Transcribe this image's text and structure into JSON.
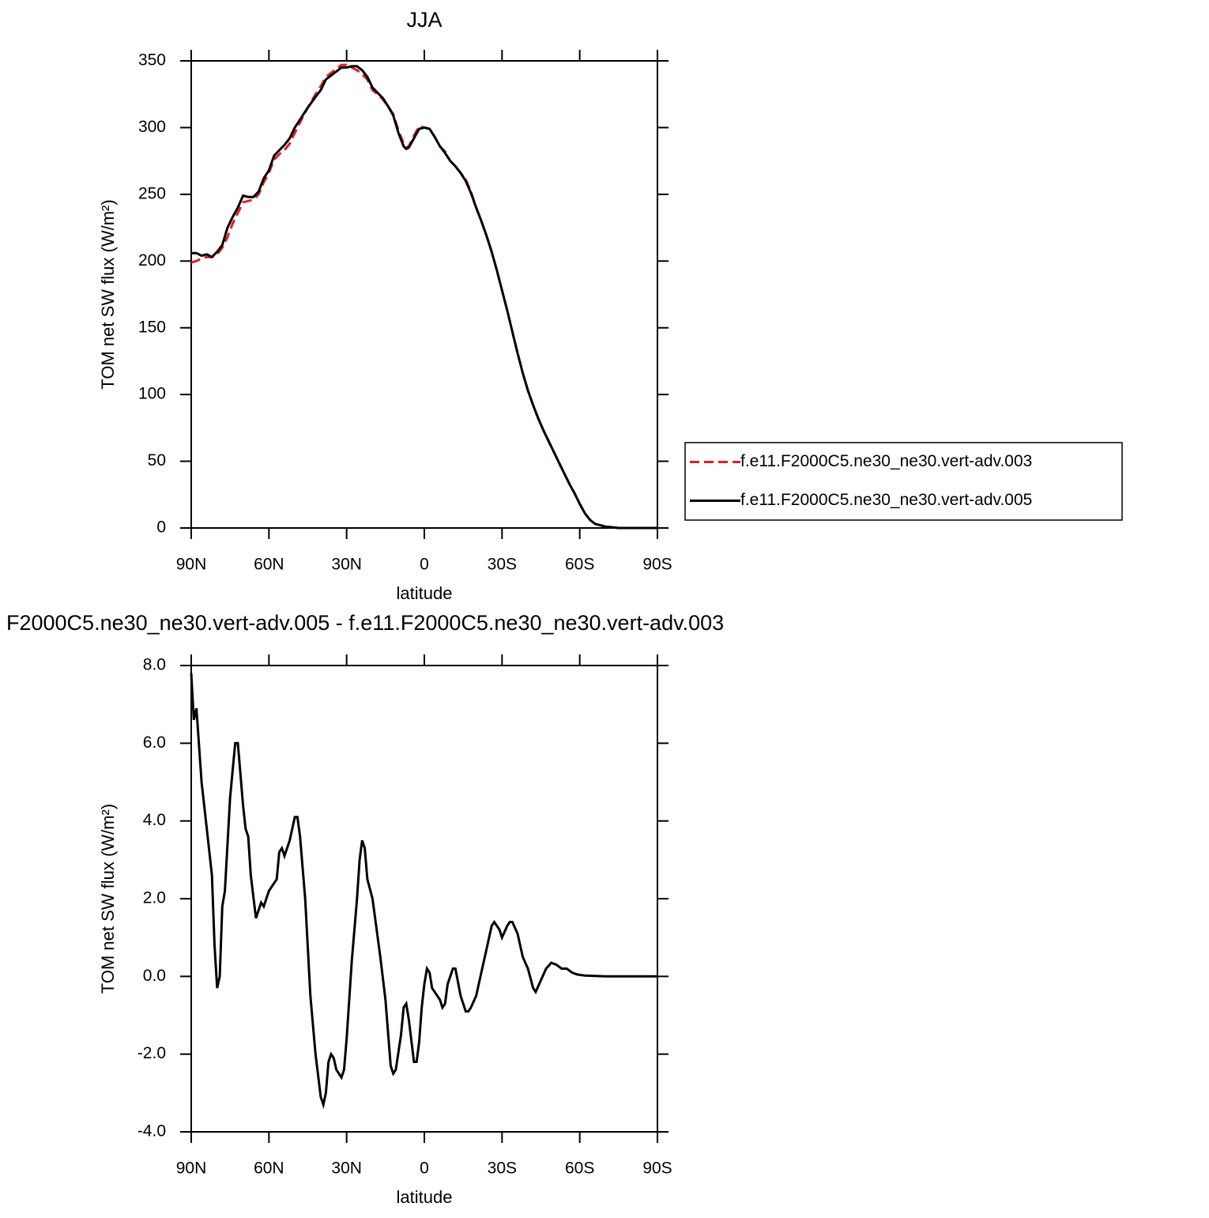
{
  "chart_data": [
    {
      "type": "line",
      "title": "JJA",
      "xlabel": "latitude",
      "ylabel": "TOM net SW flux (W/m²)",
      "x": [
        90,
        88,
        86,
        84,
        82,
        80,
        78,
        76,
        74,
        72,
        70,
        68,
        66,
        64,
        62,
        60,
        58,
        56,
        54,
        52,
        50,
        48,
        45,
        42,
        40,
        38,
        36,
        34,
        32,
        30,
        28,
        26,
        24,
        22,
        20,
        18,
        16,
        14,
        12,
        10,
        8,
        7,
        6,
        4,
        2,
        0,
        -2,
        -4,
        -6,
        -8,
        -10,
        -12,
        -14,
        -16,
        -18,
        -20,
        -22,
        -24,
        -26,
        -28,
        -30,
        -32,
        -34,
        -36,
        -38,
        -40,
        -42,
        -44,
        -46,
        -48,
        -50,
        -52,
        -54,
        -56,
        -58,
        -60,
        -62,
        -64,
        -66,
        -68,
        -70,
        -75,
        -80,
        -85,
        -90
      ],
      "series": [
        {
          "name": "f.e11.F2000C5.ne30_ne30.vert-adv.003",
          "color": "#e02020",
          "linestyle": "dashed",
          "values": [
            199,
            200,
            202,
            203,
            203,
            205,
            210,
            218,
            228,
            236,
            244,
            245,
            246,
            250,
            259,
            266,
            276,
            280,
            283,
            288,
            296,
            304,
            315,
            325,
            331,
            338,
            341,
            344,
            347,
            347,
            345,
            343,
            340,
            336,
            328,
            325,
            321,
            316,
            310,
            298,
            288,
            285,
            286,
            294,
            301,
            300,
            299,
            293,
            286,
            282,
            275,
            271,
            266,
            261,
            252,
            240,
            230,
            219,
            207,
            193,
            178,
            163,
            147,
            131,
            116,
            103,
            92,
            82,
            73,
            65,
            57,
            49,
            41,
            33,
            26,
            18,
            11,
            6,
            3,
            2,
            1,
            0,
            0,
            0,
            0
          ]
        },
        {
          "name": "f.e11.F2000C5.ne30_ne30.vert-adv.005",
          "color": "#000000",
          "linestyle": "solid",
          "values": [
            206,
            206,
            204,
            205,
            203,
            207,
            212,
            225,
            233,
            240,
            249,
            248,
            248,
            252,
            262,
            268,
            279,
            283,
            287,
            292,
            300,
            306,
            315,
            323,
            328,
            336,
            339,
            342,
            345,
            345,
            346,
            346,
            343,
            338,
            330,
            326,
            322,
            316,
            309,
            296,
            286,
            284,
            285,
            292,
            299,
            300,
            299,
            293,
            286,
            281,
            275,
            271,
            266,
            260,
            251,
            240,
            230,
            219,
            207,
            193,
            178,
            163,
            147,
            131,
            116,
            103,
            92,
            82,
            73,
            65,
            57,
            49,
            41,
            33,
            26,
            18,
            11,
            6,
            3,
            2,
            1,
            0,
            0,
            0,
            0
          ]
        }
      ],
      "xlim": [
        90,
        -90
      ],
      "xticks": [
        {
          "value": 90,
          "label": "90N"
        },
        {
          "value": 60,
          "label": "60N"
        },
        {
          "value": 30,
          "label": "30N"
        },
        0,
        {
          "value": -30,
          "label": "30S"
        },
        {
          "value": -60,
          "label": "60S"
        },
        {
          "value": -90,
          "label": "90S"
        }
      ],
      "ylim": [
        0,
        350
      ],
      "yticks": [
        0,
        50,
        100,
        150,
        200,
        250,
        300,
        350
      ],
      "legend": "right"
    },
    {
      "type": "line",
      "title": "F2000C5.ne30_ne30.vert-adv.005 - f.e11.F2000C5.ne30_ne30.vert-adv.003",
      "xlabel": "latitude",
      "ylabel": "TOM net SW flux (W/m²)",
      "x": [
        90,
        89,
        88,
        86,
        84,
        82,
        81,
        80,
        79,
        78,
        77,
        75,
        74,
        73,
        72,
        70,
        69,
        68,
        67,
        65,
        64,
        63,
        62,
        60,
        58,
        57,
        56,
        55,
        54,
        52,
        50,
        49,
        48,
        46,
        44,
        42,
        40,
        39,
        38,
        37,
        36,
        35,
        34,
        32,
        31,
        30,
        28,
        26,
        25,
        24,
        23,
        22,
        20,
        18,
        17,
        15,
        13,
        12,
        11,
        9,
        8,
        7,
        6,
        4,
        3,
        2,
        1,
        0,
        -1,
        -2,
        -3,
        -5,
        -6,
        -7,
        -8,
        -9,
        -11,
        -12,
        -14,
        -16,
        -17,
        -18,
        -20,
        -22,
        -24,
        -26,
        -27,
        -28,
        -29,
        -30,
        -32,
        -33,
        -34,
        -36,
        -38,
        -40,
        -42,
        -43,
        -45,
        -47,
        -49,
        -51,
        -53,
        -55,
        -57,
        -59,
        -62,
        -70,
        -90
      ],
      "series": [
        {
          "name": "difference",
          "color": "#000000",
          "linestyle": "solid",
          "values": [
            7.8,
            6.6,
            6.9,
            5,
            3.8,
            2.6,
            0.8,
            -0.3,
            0,
            1.8,
            2.2,
            4.6,
            5.3,
            6.0,
            6.0,
            4.4,
            3.8,
            3.6,
            2.6,
            1.5,
            1.7,
            1.9,
            1.8,
            2.2,
            2.4,
            2.5,
            3.2,
            3.3,
            3.1,
            3.5,
            4.1,
            4.1,
            3.6,
            2,
            -0.5,
            -2.0,
            -3.1,
            -3.3,
            -3.0,
            -2.2,
            -2.0,
            -2.1,
            -2.4,
            -2.6,
            -2.4,
            -1.6,
            0.4,
            2.0,
            3.0,
            3.5,
            3.3,
            2.5,
            2.0,
            1.0,
            0.5,
            -0.6,
            -2.3,
            -2.5,
            -2.4,
            -1.5,
            -0.8,
            -0.7,
            -1.1,
            -2.2,
            -2.2,
            -1.7,
            -0.8,
            -0.2,
            0.2,
            0.1,
            -0.3,
            -0.5,
            -0.6,
            -0.8,
            -0.7,
            -0.2,
            0.2,
            0.2,
            -0.5,
            -0.9,
            -0.9,
            -0.8,
            -0.5,
            0.1,
            0.7,
            1.3,
            1.4,
            1.3,
            1.2,
            1.0,
            1.3,
            1.4,
            1.4,
            1.1,
            0.5,
            0.2,
            -0.3,
            -0.4,
            -0.1,
            0.2,
            0.35,
            0.3,
            0.2,
            0.2,
            0.1,
            0.05,
            0.02,
            0,
            0
          ]
        }
      ],
      "xlim": [
        90,
        -90
      ],
      "xticks": [
        {
          "value": 90,
          "label": "90N"
        },
        {
          "value": 60,
          "label": "60N"
        },
        {
          "value": 30,
          "label": "30N"
        },
        0,
        {
          "value": -30,
          "label": "30S"
        },
        {
          "value": -60,
          "label": "60S"
        },
        {
          "value": -90,
          "label": "90S"
        }
      ],
      "ylim": [
        -4,
        8
      ],
      "yticks": [
        {
          "value": -4,
          "label": "-4.0"
        },
        {
          "value": -2,
          "label": "-2.0"
        },
        {
          "value": 0,
          "label": "0.0"
        },
        {
          "value": 2,
          "label": "2.0"
        },
        {
          "value": 4,
          "label": "4.0"
        },
        {
          "value": 6,
          "label": "6.0"
        },
        {
          "value": 8,
          "label": "8.0"
        }
      ]
    }
  ]
}
